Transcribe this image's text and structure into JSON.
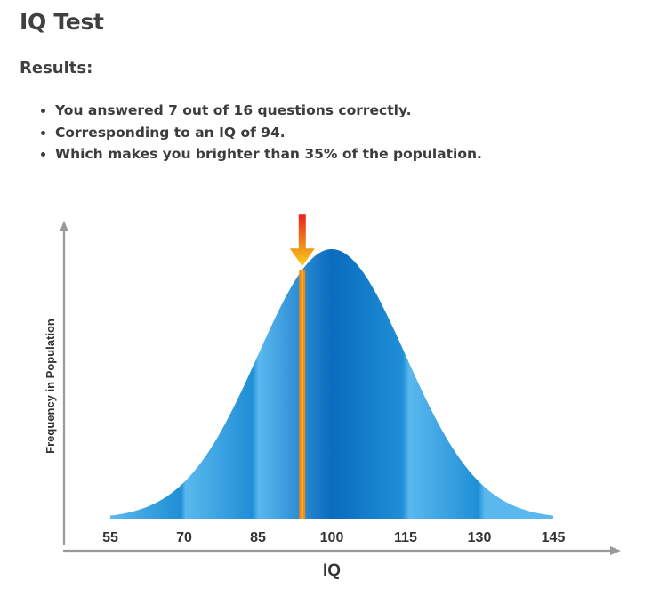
{
  "page": {
    "title": "IQ Test",
    "results_heading": "Results:",
    "results": [
      "You answered 7 out of 16 questions correctly.",
      "Corresponding to an IQ of 94.",
      "Which makes you brighter than 35% of the population."
    ]
  },
  "colors": {
    "curve_light": "#5ab8ee",
    "curve_mid": "#1f8fd6",
    "curve_dark": "#0a6bbf",
    "axis": "#9a9a9a",
    "marker_outer": "#f08a1c",
    "marker_inner": "#f6c21a",
    "arrow_top": "#e8241c",
    "arrow_bottom": "#f7d21a"
  },
  "chart_data": {
    "type": "area",
    "xlabel": "IQ",
    "ylabel": "Frequency in Population",
    "x_ticks": [
      "55",
      "70",
      "85",
      "100",
      "115",
      "130",
      "145"
    ],
    "xlim": [
      55,
      145
    ],
    "distribution": {
      "mean": 100,
      "sd": 15
    },
    "marker": {
      "x": 94,
      "icon": "down-arrow-icon"
    },
    "grid": false
  }
}
